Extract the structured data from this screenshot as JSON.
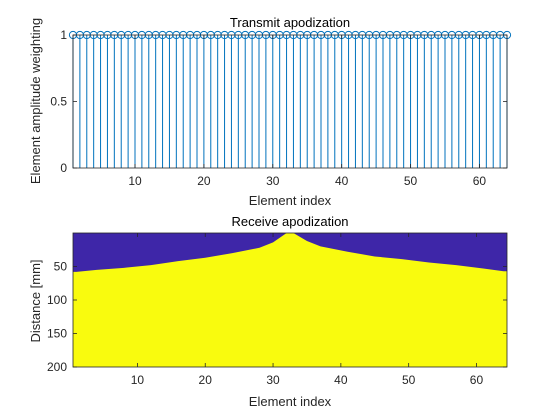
{
  "chart_data": [
    {
      "type": "stem",
      "title": "Transmit apodization",
      "xlabel": "Element index",
      "ylabel": "Element amplitude weighting",
      "xlim": [
        1,
        64
      ],
      "ylim": [
        0,
        1
      ],
      "xticks": [
        "10",
        "20",
        "30",
        "40",
        "50",
        "60"
      ],
      "yticks": [
        "0",
        "0.5",
        "1"
      ],
      "x": [
        1,
        2,
        3,
        4,
        5,
        6,
        7,
        8,
        9,
        10,
        11,
        12,
        13,
        14,
        15,
        16,
        17,
        18,
        19,
        20,
        21,
        22,
        23,
        24,
        25,
        26,
        27,
        28,
        29,
        30,
        31,
        32,
        33,
        34,
        35,
        36,
        37,
        38,
        39,
        40,
        41,
        42,
        43,
        44,
        45,
        46,
        47,
        48,
        49,
        50,
        51,
        52,
        53,
        54,
        55,
        56,
        57,
        58,
        59,
        60,
        61,
        62,
        63,
        64
      ],
      "values": [
        1,
        1,
        1,
        1,
        1,
        1,
        1,
        1,
        1,
        1,
        1,
        1,
        1,
        1,
        1,
        1,
        1,
        1,
        1,
        1,
        1,
        1,
        1,
        1,
        1,
        1,
        1,
        1,
        1,
        1,
        1,
        1,
        1,
        1,
        1,
        1,
        1,
        1,
        1,
        1,
        1,
        1,
        1,
        1,
        1,
        1,
        1,
        1,
        1,
        1,
        1,
        1,
        1,
        1,
        1,
        1,
        1,
        1,
        1,
        1,
        1,
        1,
        1,
        1
      ],
      "color": "#0072BD",
      "marker": "circle",
      "grid": false
    },
    {
      "type": "heatmap",
      "title": "Receive apodization",
      "xlabel": "Element index",
      "ylabel": "Distance [mm]",
      "xlim": [
        0.5,
        64.5
      ],
      "ylim": [
        200,
        0
      ],
      "xticks": [
        "10",
        "20",
        "30",
        "40",
        "50",
        "60"
      ],
      "yticks": [
        "50",
        "100",
        "150",
        "200"
      ],
      "colors": {
        "inactive": "#3E26A8",
        "active": "#F9FB0E"
      },
      "aperture_boundary_depth_mm": [
        {
          "element": 1,
          "depth": 58
        },
        {
          "element": 4,
          "depth": 55
        },
        {
          "element": 8,
          "depth": 52
        },
        {
          "element": 12,
          "depth": 48
        },
        {
          "element": 16,
          "depth": 42
        },
        {
          "element": 20,
          "depth": 37
        },
        {
          "element": 24,
          "depth": 30
        },
        {
          "element": 28,
          "depth": 22
        },
        {
          "element": 30,
          "depth": 14
        },
        {
          "element": 32,
          "depth": 0
        },
        {
          "element": 33,
          "depth": 0
        },
        {
          "element": 35,
          "depth": 12
        },
        {
          "element": 37,
          "depth": 20
        },
        {
          "element": 41,
          "depth": 28
        },
        {
          "element": 45,
          "depth": 35
        },
        {
          "element": 49,
          "depth": 39
        },
        {
          "element": 53,
          "depth": 44
        },
        {
          "element": 57,
          "depth": 48
        },
        {
          "element": 61,
          "depth": 53
        },
        {
          "element": 64,
          "depth": 57
        }
      ],
      "grid": false
    }
  ]
}
